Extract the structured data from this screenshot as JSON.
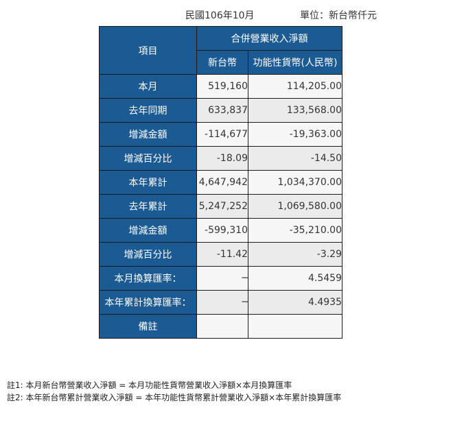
{
  "header": {
    "period": "民國106年10月",
    "unit": "單位：新台幣仟元"
  },
  "table": {
    "col_item": "項目",
    "col_group": "合併營業收入淨額",
    "col_twd": "新台幣",
    "col_func": "功能性貨幣(人民幣)",
    "rows": [
      {
        "label": "本月",
        "twd": "519,160",
        "func": "114,205.00"
      },
      {
        "label": "去年同期",
        "twd": "633,837",
        "func": "133,568.00"
      },
      {
        "label": "增減金額",
        "twd": "-114,677",
        "func": "-19,363.00"
      },
      {
        "label": "增減百分比",
        "twd": "-18.09",
        "func": "-14.50"
      },
      {
        "label": "本年累計",
        "twd": "4,647,942",
        "func": "1,034,370.00"
      },
      {
        "label": "去年累計",
        "twd": "5,247,252",
        "func": "1,069,580.00"
      },
      {
        "label": "增減金額",
        "twd": "-599,310",
        "func": "-35,210.00"
      },
      {
        "label": "增減百分比",
        "twd": "-11.42",
        "func": "-3.29"
      },
      {
        "label": "本月換算匯率：",
        "twd": "─",
        "func": "4.5459"
      },
      {
        "label": "本年累計換算匯率：",
        "twd": "─",
        "func": "4.4935"
      },
      {
        "label": "備註",
        "twd": "",
        "func": ""
      }
    ]
  },
  "notes": [
    "註1: 本月新台幣營業收入淨額 = 本月功能性貨幣營業收入淨額×本月換算匯率",
    "註2: 本年新台幣累計營業收入淨額 = 本年功能性貨幣累計營業收入淨額×本年累計換算匯率"
  ]
}
